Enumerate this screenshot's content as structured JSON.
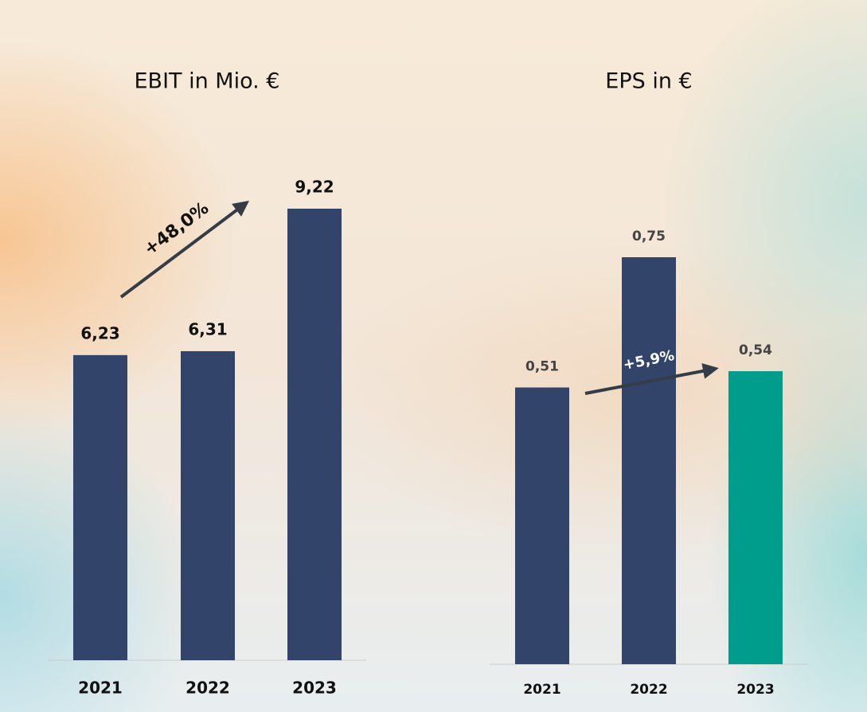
{
  "chart_data": [
    {
      "type": "bar",
      "title": "EBIT in Mio. €",
      "categories": [
        "2021",
        "2022",
        "2023"
      ],
      "values": [
        6.23,
        6.31,
        9.22
      ],
      "value_labels": [
        "6,23",
        "6,31",
        "9,22"
      ],
      "colors": [
        "#33446b",
        "#33446b",
        "#33446b"
      ],
      "annotation": "+48,0%"
    },
    {
      "type": "bar",
      "title": "EPS in €",
      "categories": [
        "2021",
        "2022",
        "2023"
      ],
      "values": [
        0.51,
        0.75,
        0.54
      ],
      "value_labels": [
        "0,51",
        "0,75",
        "0,54"
      ],
      "colors": [
        "#33446b",
        "#33446b",
        "#009c8c"
      ],
      "annotation": "+5,9%"
    }
  ]
}
